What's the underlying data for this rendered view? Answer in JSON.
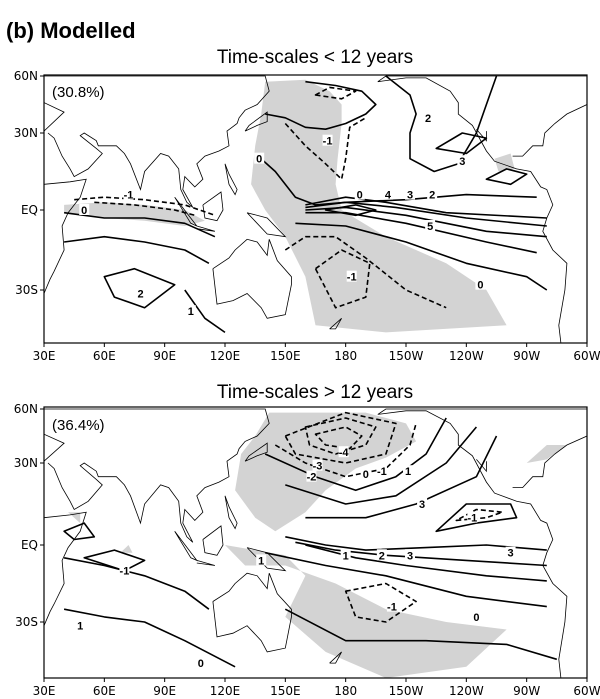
{
  "figure_title": "(b) Modelled",
  "panels": [
    {
      "title": "Time-scales < 12 years",
      "variance": "(30.8%)",
      "contour_labels": [
        {
          "text": "2",
          "lon": 221,
          "lat": 38
        },
        {
          "text": "-1",
          "lon": 171,
          "lat": 27
        },
        {
          "text": "0",
          "lon": 137,
          "lat": 20
        },
        {
          "text": "3",
          "lon": 238,
          "lat": 19
        },
        {
          "text": "0",
          "lon": 187,
          "lat": 6
        },
        {
          "text": "4",
          "lon": 201,
          "lat": 6
        },
        {
          "text": "3",
          "lon": 212,
          "lat": 6
        },
        {
          "text": "2",
          "lon": 223,
          "lat": 6
        },
        {
          "text": "5",
          "lon": 222,
          "lat": -6
        },
        {
          "text": "-1",
          "lon": 72,
          "lat": 6
        },
        {
          "text": "0",
          "lon": 50,
          "lat": 0
        },
        {
          "text": "-1",
          "lon": 183,
          "lat": -25
        },
        {
          "text": "0",
          "lon": 247,
          "lat": -28
        },
        {
          "text": "2",
          "lon": 78,
          "lat": -31
        },
        {
          "text": "1",
          "lon": 103,
          "lat": -36
        }
      ]
    },
    {
      "title": "Time-scales > 12 years",
      "variance": "(36.4%)",
      "contour_labels": [
        {
          "text": "-4",
          "lon": 179,
          "lat": 36
        },
        {
          "text": "-3",
          "lon": 166,
          "lat": 29
        },
        {
          "text": "-2",
          "lon": 163,
          "lat": 25
        },
        {
          "text": "0",
          "lon": 190,
          "lat": 26
        },
        {
          "text": "-1",
          "lon": 198,
          "lat": 27
        },
        {
          "text": "1",
          "lon": 211,
          "lat": 27
        },
        {
          "text": "3",
          "lon": 218,
          "lat": 15
        },
        {
          "text": "-1",
          "lon": 243,
          "lat": 10
        },
        {
          "text": "1",
          "lon": 180,
          "lat": -4
        },
        {
          "text": "2",
          "lon": 198,
          "lat": -4
        },
        {
          "text": "3",
          "lon": 212,
          "lat": -4
        },
        {
          "text": "3",
          "lon": 262,
          "lat": -3
        },
        {
          "text": "-1",
          "lon": 70,
          "lat": -10
        },
        {
          "text": "1",
          "lon": 138,
          "lat": -6
        },
        {
          "text": "-1",
          "lon": 203,
          "lat": -24
        },
        {
          "text": "0",
          "lon": 245,
          "lat": -28
        },
        {
          "text": "1",
          "lon": 48,
          "lat": -31
        },
        {
          "text": "0",
          "lon": 108,
          "lat": -41
        }
      ]
    }
  ],
  "axes": {
    "lon_ticks": [
      "30E",
      "60E",
      "90E",
      "120E",
      "150E",
      "180",
      "150W",
      "120W",
      "90W",
      "60W"
    ],
    "lat_ticks": [
      "60N",
      "30N",
      "EQ",
      "30S"
    ]
  },
  "colors": {
    "shading": "#d3d3d3",
    "contour": "#000000"
  }
}
